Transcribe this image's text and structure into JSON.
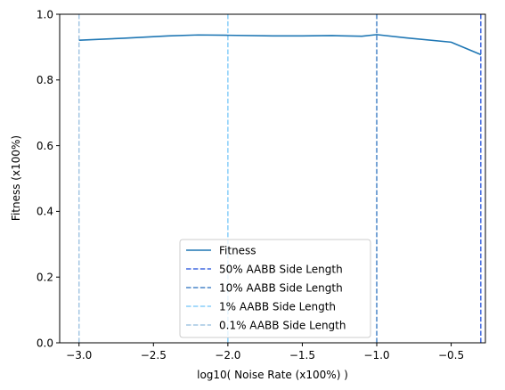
{
  "chart_data": {
    "type": "line",
    "title": "",
    "xlabel": "log10( Noise Rate (x100%) )",
    "ylabel": "Fitness (x100%)",
    "xlim": [
      -3.13,
      -0.27
    ],
    "ylim": [
      0.0,
      1.0
    ],
    "xticks": [
      -3.0,
      -2.5,
      -2.0,
      -1.5,
      -1.0,
      -0.5
    ],
    "xtick_labels": [
      "−3.0",
      "−2.5",
      "−2.0",
      "−1.5",
      "−1.0",
      "−0.5"
    ],
    "yticks": [
      0.0,
      0.2,
      0.4,
      0.6,
      0.8,
      1.0
    ],
    "ytick_labels": [
      "0.0",
      "0.2",
      "0.4",
      "0.6",
      "0.8",
      "1.0"
    ],
    "grid": false,
    "legend_position": "lower center",
    "series": [
      {
        "name": "Fitness",
        "color": "#1f77b4",
        "style": "solid",
        "x": [
          -3.0,
          -2.7,
          -2.4,
          -2.2,
          -2.0,
          -1.7,
          -1.5,
          -1.3,
          -1.1,
          -1.0,
          -0.8,
          -0.5,
          -0.3
        ],
        "y": [
          0.921,
          0.927,
          0.934,
          0.937,
          0.936,
          0.934,
          0.934,
          0.935,
          0.933,
          0.938,
          0.928,
          0.915,
          0.877
        ]
      }
    ],
    "reference_lines": [
      {
        "name": "50% AABB Side Length",
        "x": -0.301,
        "color": "#4169e1",
        "style": "dashed"
      },
      {
        "name": "10% AABB Side Length",
        "x": -1.0,
        "color": "#4a86c8",
        "style": "dashed"
      },
      {
        "name": "1% AABB Side Length",
        "x": -2.0,
        "color": "#87cefa",
        "style": "dashed"
      },
      {
        "name": "0.1% AABB Side Length",
        "x": -3.0,
        "color": "#a4c6e3",
        "style": "dashed"
      }
    ]
  }
}
